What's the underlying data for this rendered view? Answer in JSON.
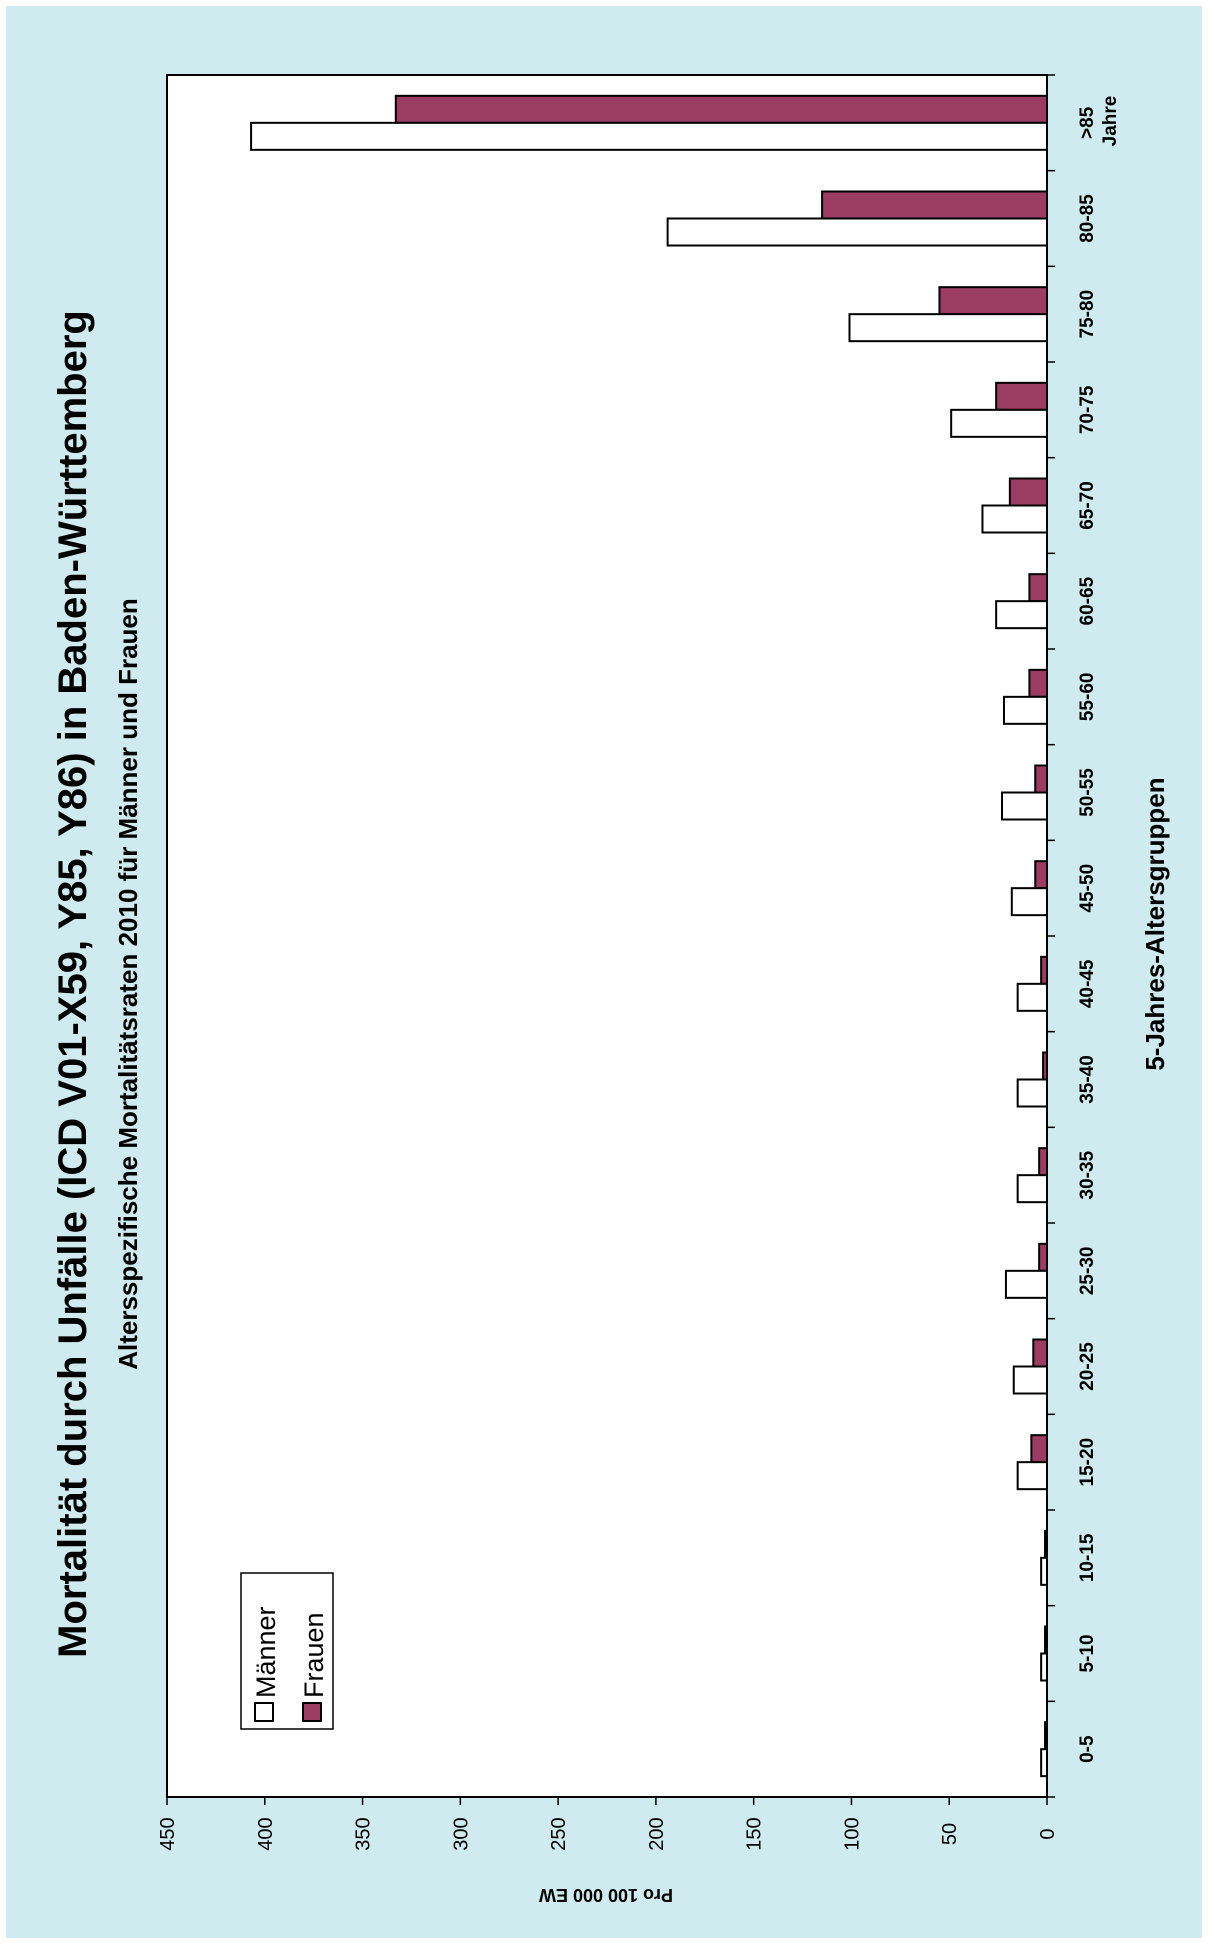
{
  "colors": {
    "background": "#d0ebef",
    "plot": "#ffffff",
    "maenner": "#ffffff",
    "frauen": "#9b3d63",
    "stroke": "#000000"
  },
  "chart_data": {
    "type": "bar",
    "orientation": "rotated-90",
    "title": "Mortalität durch Unfälle (ICD V01-X59, Y85, Y86) in Baden-Württemberg",
    "subtitle": "Altersspezifische Mortalitätsraten 2010 für Männer und Frauen",
    "xlabel": "5-Jahres-Altersgruppen",
    "ylabel": "Pro 100 000 EW",
    "category_unit": "Jahre",
    "categories": [
      "0-5",
      "5-10",
      "10-15",
      "15-20",
      "20-25",
      "25-30",
      "30-35",
      "35-40",
      "40-45",
      "45-50",
      "50-55",
      "55-60",
      "60-65",
      "65-70",
      "70-75",
      "75-80",
      "80-85",
      ">85"
    ],
    "series": [
      {
        "name": "Männer",
        "color": "#ffffff",
        "values": [
          3,
          3,
          3,
          15,
          17,
          21,
          15,
          15,
          15,
          18,
          23,
          22,
          26,
          33,
          49,
          101,
          194,
          407
        ]
      },
      {
        "name": "Frauen",
        "color": "#9b3d63",
        "values": [
          1,
          1,
          1,
          8,
          7,
          4,
          4,
          2,
          3,
          6,
          6,
          9,
          9,
          19,
          26,
          55,
          115,
          333
        ]
      }
    ],
    "ylim": [
      0,
      450
    ],
    "yticks": [
      0,
      50,
      100,
      150,
      200,
      250,
      300,
      350,
      400,
      450
    ],
    "grid": false,
    "legend_position": "upper-left"
  }
}
